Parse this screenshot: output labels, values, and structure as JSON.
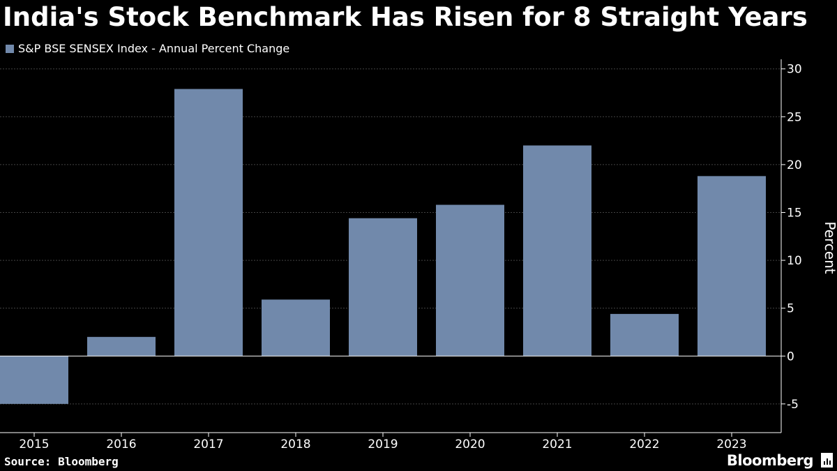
{
  "header": {
    "title": "India's Stock Benchmark Has Risen for 8 Straight Years"
  },
  "legend": {
    "label": "S&P BSE SENSEX Index - Annual Percent Change",
    "color": "#7189ab"
  },
  "footer": {
    "source": "Source: Bloomberg",
    "brand": "Bloomberg"
  },
  "chart_data": {
    "type": "bar",
    "categories": [
      "2015",
      "2016",
      "2017",
      "2018",
      "2019",
      "2020",
      "2021",
      "2022",
      "2023"
    ],
    "series": [
      {
        "name": "S&P BSE SENSEX Index - Annual Percent Change",
        "values": [
          -5.0,
          2.0,
          27.9,
          5.9,
          14.4,
          15.8,
          22.0,
          4.4,
          18.8
        ]
      }
    ],
    "ylabel": "Percent",
    "ylim": [
      -8,
      31
    ],
    "yticks": [
      -5,
      0,
      5,
      10,
      15,
      20,
      25,
      30
    ],
    "grid": true,
    "axis_position": "right",
    "bar_color": "#7189ab",
    "grid_color": "#444444"
  }
}
